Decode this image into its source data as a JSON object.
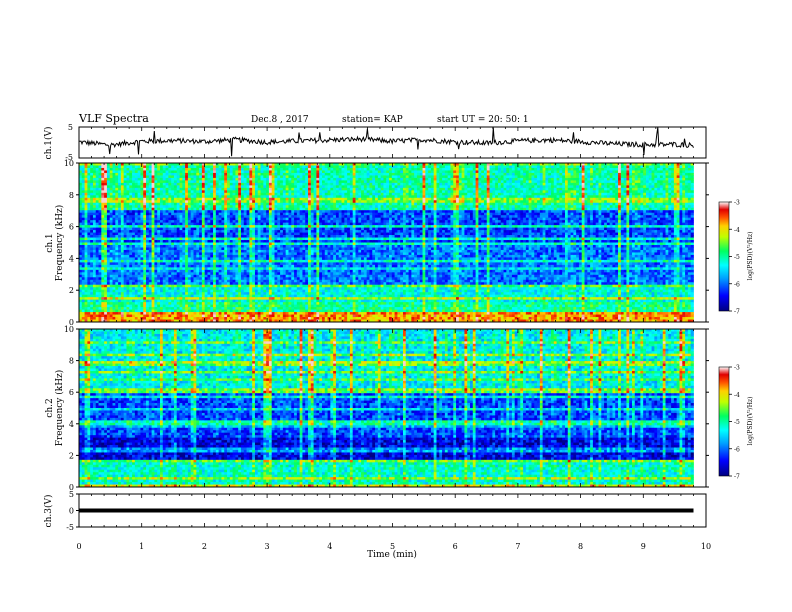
{
  "header": {
    "title": "VLF Spectra",
    "date": "Dec.8 , 2017",
    "station": "station= KAP",
    "start_ut": "start UT = 20: 50: 1"
  },
  "chart_data": [
    {
      "type": "line",
      "panel": "ch1-timeseries",
      "ylabel": "ch.1(V)",
      "ylim": [
        -5,
        5
      ],
      "y_ticks": [
        "5",
        "-5"
      ],
      "xlim": [
        0,
        10
      ],
      "x": [
        0,
        0.5,
        1,
        1.5,
        2,
        2.5,
        3,
        3.5,
        4,
        4.5,
        5,
        5.5,
        6,
        6.5,
        7,
        7.5,
        8,
        8.5,
        9,
        9.5,
        9.8
      ],
      "values": [
        0.2,
        -0.8,
        0.4,
        0.6,
        0.3,
        0.9,
        0.1,
        0.5,
        0.8,
        1.1,
        0.4,
        0.9,
        0.2,
        -0.2,
        0.5,
        0.8,
        0.3,
        -0.4,
        -0.7,
        -0.6,
        -0.9
      ]
    },
    {
      "type": "heatmap",
      "panel": "ch1-spectrogram",
      "ylabel": "ch.1",
      "ylabel2": "Frequency (kHz)",
      "ylim": [
        0,
        10
      ],
      "y_ticks": [
        "0",
        "2",
        "4",
        "6",
        "8",
        "10"
      ],
      "xlim": [
        0,
        9.8
      ],
      "colorbar": {
        "label": "log(PSD)(V²/Hz)",
        "range": [
          -7,
          -3
        ],
        "ticks": [
          "-3",
          "-4",
          "-5",
          "-6",
          "-7"
        ]
      },
      "description_bands_khz": [
        {
          "from": 0,
          "to": 0.6,
          "level": -3.8
        },
        {
          "from": 0.6,
          "to": 1.3,
          "level": -5.0
        },
        {
          "from": 1.3,
          "to": 2.4,
          "level": -5.3
        },
        {
          "from": 2.4,
          "to": 5.0,
          "level": -6.0
        },
        {
          "from": 5.0,
          "to": 7.0,
          "level": -6.2
        },
        {
          "from": 7.0,
          "to": 10.0,
          "level": -5.1
        }
      ]
    },
    {
      "type": "heatmap",
      "panel": "ch2-spectrogram",
      "ylabel": "ch.2",
      "ylabel2": "Frequency (kHz)",
      "ylim": [
        0,
        10
      ],
      "y_ticks": [
        "0",
        "2",
        "4",
        "6",
        "8",
        "10"
      ],
      "xlim": [
        0,
        9.8
      ],
      "colorbar": {
        "label": "log(PSD)(V²/Hz)",
        "range": [
          -7,
          -3
        ],
        "ticks": [
          "-3",
          "-4",
          "-5",
          "-6",
          "-7"
        ]
      },
      "description_bands_khz": [
        {
          "from": 0,
          "to": 1.7,
          "level": -5.2
        },
        {
          "from": 1.7,
          "to": 3.2,
          "level": -6.6
        },
        {
          "from": 3.2,
          "to": 6.0,
          "level": -6.2
        },
        {
          "from": 6.0,
          "to": 10.0,
          "level": -5.4
        }
      ]
    },
    {
      "type": "line",
      "panel": "ch3-timeseries",
      "ylabel": "ch.3(V)",
      "ylim": [
        -5,
        5
      ],
      "y_ticks": [
        "5",
        "0",
        "-5"
      ],
      "xlim": [
        0,
        10
      ],
      "x": [
        0,
        9.8
      ],
      "values": [
        0,
        0
      ]
    }
  ],
  "x_axis": {
    "label": "Time (min)",
    "ticks": [
      "0",
      "1",
      "2",
      "3",
      "4",
      "5",
      "6",
      "7",
      "8",
      "9",
      "10"
    ]
  }
}
